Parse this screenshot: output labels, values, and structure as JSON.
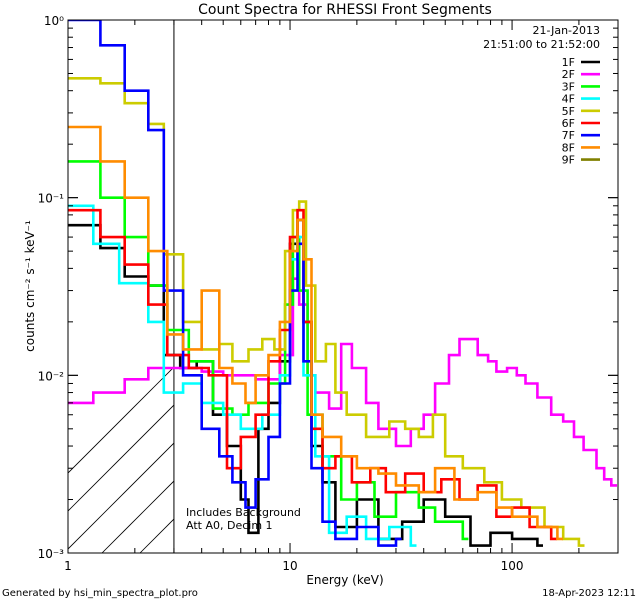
{
  "chart_data": {
    "type": "line",
    "title": "Count Spectra for RHESSI Front Segments",
    "xlabel": "Energy (keV)",
    "ylabel": "counts cm⁻² s⁻¹ keV⁻¹",
    "xscale": "log",
    "yscale": "log",
    "xlim": [
      1,
      300
    ],
    "ylim": [
      0.001,
      1
    ],
    "x_ticks": [
      {
        "v": 1,
        "label": "1"
      },
      {
        "v": 10,
        "label": "10"
      },
      {
        "v": 100,
        "label": "100"
      }
    ],
    "y_ticks": [
      {
        "v": 1,
        "label": "10⁰"
      },
      {
        "v": 0.1,
        "label": "10⁻¹"
      },
      {
        "v": 0.01,
        "label": "10⁻²"
      },
      {
        "v": 0.001,
        "label": "10⁻³"
      }
    ],
    "date": "21-Jan-2013",
    "time_range": "21:51:00 to 21:52:00",
    "excluded_below_keV": 3,
    "notes": [
      "Includes Background",
      "Att A0, Decim 1"
    ],
    "footer_left": "Generated by hsi_min_spectra_plot.pro",
    "footer_right": "18-Apr-2023 12:11",
    "legend_position": "top-right",
    "series": [
      {
        "name": "1F",
        "color": "#000000",
        "points": [
          [
            1.0,
            0.07
          ],
          [
            1.4,
            0.052
          ],
          [
            1.8,
            0.036
          ],
          [
            2.3,
            0.032
          ],
          [
            2.7,
            0.013
          ],
          [
            3.2,
            0.011
          ],
          [
            3.8,
            0.012
          ],
          [
            4.5,
            0.006
          ],
          [
            5.2,
            0.004
          ],
          [
            6.0,
            0.002
          ],
          [
            6.5,
            0.0013
          ],
          [
            7.2,
            0.005
          ],
          [
            8.0,
            0.007
          ],
          [
            9.0,
            0.012
          ],
          [
            10.0,
            0.055
          ],
          [
            10.8,
            0.075
          ],
          [
            11.5,
            0.02
          ],
          [
            12.5,
            0.004
          ],
          [
            14,
            0.0025
          ],
          [
            16,
            0.0014
          ],
          [
            20,
            0.002
          ],
          [
            25,
            0.0012
          ],
          [
            32,
            0.0015
          ],
          [
            40,
            0.002
          ],
          [
            50,
            0.0016
          ],
          [
            65,
            0.0011
          ],
          [
            80,
            0.0013
          ],
          [
            100,
            0.0012
          ],
          [
            130,
            0.0011
          ]
        ]
      },
      {
        "name": "2F",
        "color": "#ff00ff",
        "points": [
          [
            1.0,
            0.007
          ],
          [
            1.3,
            0.008
          ],
          [
            1.8,
            0.0095
          ],
          [
            2.3,
            0.011
          ],
          [
            2.8,
            0.011
          ],
          [
            3.3,
            0.011
          ],
          [
            4.0,
            0.0105
          ],
          [
            5.0,
            0.01
          ],
          [
            7.0,
            0.0095
          ],
          [
            9.0,
            0.013
          ],
          [
            10.3,
            0.035
          ],
          [
            11.0,
            0.025
          ],
          [
            12.0,
            0.01
          ],
          [
            13,
            0.008
          ],
          [
            15,
            0.0065
          ],
          [
            17,
            0.015
          ],
          [
            19,
            0.011
          ],
          [
            22,
            0.007
          ],
          [
            25,
            0.005
          ],
          [
            30,
            0.004
          ],
          [
            35,
            0.005
          ],
          [
            40,
            0.006
          ],
          [
            45,
            0.009
          ],
          [
            52,
            0.013
          ],
          [
            58,
            0.016
          ],
          [
            64,
            0.016
          ],
          [
            70,
            0.013
          ],
          [
            78,
            0.012
          ],
          [
            85,
            0.0105
          ],
          [
            95,
            0.011
          ],
          [
            105,
            0.01
          ],
          [
            115,
            0.009
          ],
          [
            130,
            0.0075
          ],
          [
            150,
            0.006
          ],
          [
            170,
            0.0055
          ],
          [
            190,
            0.0045
          ],
          [
            210,
            0.0038
          ],
          [
            240,
            0.003
          ],
          [
            260,
            0.0026
          ],
          [
            280,
            0.0024
          ]
        ]
      },
      {
        "name": "3F",
        "color": "#00ff00",
        "points": [
          [
            1.0,
            0.16
          ],
          [
            1.4,
            0.1
          ],
          [
            1.8,
            0.06
          ],
          [
            2.3,
            0.032
          ],
          [
            2.8,
            0.018
          ],
          [
            3.5,
            0.012
          ],
          [
            4.5,
            0.0065
          ],
          [
            5.5,
            0.006
          ],
          [
            6.5,
            0.007
          ],
          [
            8.0,
            0.009
          ],
          [
            9.5,
            0.025
          ],
          [
            10.3,
            0.06
          ],
          [
            11.0,
            0.03
          ],
          [
            12.0,
            0.006
          ],
          [
            14,
            0.0035
          ],
          [
            17,
            0.002
          ],
          [
            20,
            0.0025
          ],
          [
            24,
            0.0016
          ],
          [
            30,
            0.0022
          ],
          [
            38,
            0.0018
          ],
          [
            45,
            0.0015
          ],
          [
            60,
            0.0012
          ]
        ]
      },
      {
        "name": "4F",
        "color": "#00ffff",
        "points": [
          [
            1.0,
            0.09
          ],
          [
            1.3,
            0.055
          ],
          [
            1.7,
            0.033
          ],
          [
            2.3,
            0.02
          ],
          [
            2.7,
            0.008
          ],
          [
            3.3,
            0.009
          ],
          [
            4.0,
            0.007
          ],
          [
            5.0,
            0.006
          ],
          [
            6.0,
            0.005
          ],
          [
            7.5,
            0.006
          ],
          [
            9.0,
            0.01
          ],
          [
            10.0,
            0.045
          ],
          [
            10.8,
            0.06
          ],
          [
            11.5,
            0.01
          ],
          [
            13,
            0.0035
          ],
          [
            15,
            0.0013
          ],
          [
            18,
            0.0016
          ],
          [
            22,
            0.0012
          ],
          [
            28,
            0.0014
          ],
          [
            35,
            0.0011
          ]
        ]
      },
      {
        "name": "5F",
        "color": "#cccc00",
        "points": [
          [
            1.0,
            0.47
          ],
          [
            1.4,
            0.44
          ],
          [
            1.8,
            0.34
          ],
          [
            2.3,
            0.26
          ],
          [
            2.7,
            0.048
          ],
          [
            3.3,
            0.02
          ],
          [
            4.0,
            0.014
          ],
          [
            4.8,
            0.015
          ],
          [
            5.5,
            0.012
          ],
          [
            6.5,
            0.014
          ],
          [
            7.5,
            0.016
          ],
          [
            8.5,
            0.014
          ],
          [
            9.5,
            0.05
          ],
          [
            10.3,
            0.085
          ],
          [
            11.0,
            0.095
          ],
          [
            11.8,
            0.032
          ],
          [
            13.0,
            0.012
          ],
          [
            14.5,
            0.015
          ],
          [
            16,
            0.008
          ],
          [
            18,
            0.006
          ],
          [
            22,
            0.0045
          ],
          [
            28,
            0.0055
          ],
          [
            33,
            0.005
          ],
          [
            38,
            0.0045
          ],
          [
            44,
            0.006
          ],
          [
            50,
            0.0035
          ],
          [
            60,
            0.003
          ],
          [
            75,
            0.0025
          ],
          [
            90,
            0.002
          ],
          [
            110,
            0.0018
          ],
          [
            140,
            0.0014
          ],
          [
            170,
            0.0012
          ],
          [
            200,
            0.0011
          ]
        ]
      },
      {
        "name": "6F",
        "color": "#ff0000",
        "points": [
          [
            1.0,
            0.085
          ],
          [
            1.4,
            0.06
          ],
          [
            1.8,
            0.042
          ],
          [
            2.3,
            0.025
          ],
          [
            2.8,
            0.013
          ],
          [
            3.5,
            0.011
          ],
          [
            4.3,
            0.01
          ],
          [
            5.2,
            0.003
          ],
          [
            6.0,
            0.0045
          ],
          [
            7.0,
            0.006
          ],
          [
            8.0,
            0.012
          ],
          [
            9.0,
            0.018
          ],
          [
            10.0,
            0.06
          ],
          [
            10.8,
            0.085
          ],
          [
            11.5,
            0.02
          ],
          [
            12.5,
            0.005
          ],
          [
            14,
            0.003
          ],
          [
            16,
            0.0035
          ],
          [
            19,
            0.0025
          ],
          [
            23,
            0.003
          ],
          [
            27,
            0.0022
          ],
          [
            33,
            0.0028
          ],
          [
            40,
            0.0022
          ],
          [
            48,
            0.0026
          ],
          [
            58,
            0.002
          ],
          [
            70,
            0.0024
          ],
          [
            85,
            0.0016
          ],
          [
            100,
            0.0018
          ],
          [
            120,
            0.0014
          ],
          [
            150,
            0.0012
          ]
        ]
      },
      {
        "name": "7F",
        "color": "#0000ff",
        "points": [
          [
            1.0,
            1.0
          ],
          [
            1.4,
            0.72
          ],
          [
            1.8,
            0.4
          ],
          [
            2.3,
            0.24
          ],
          [
            2.7,
            0.03
          ],
          [
            3.3,
            0.01
          ],
          [
            4.0,
            0.005
          ],
          [
            4.8,
            0.0035
          ],
          [
            5.5,
            0.0025
          ],
          [
            6.3,
            0.0018
          ],
          [
            7.0,
            0.0026
          ],
          [
            8.0,
            0.0045
          ],
          [
            9.0,
            0.009
          ],
          [
            10.0,
            0.03
          ],
          [
            10.8,
            0.055
          ],
          [
            11.5,
            0.012
          ],
          [
            12.5,
            0.003
          ],
          [
            14,
            0.0015
          ],
          [
            16,
            0.0012
          ],
          [
            20,
            0.0014
          ],
          [
            25,
            0.0011
          ],
          [
            30,
            0.0012
          ]
        ]
      },
      {
        "name": "8F",
        "color": "#ff8c00",
        "points": [
          [
            1.0,
            0.25
          ],
          [
            1.4,
            0.16
          ],
          [
            1.8,
            0.1
          ],
          [
            2.3,
            0.05
          ],
          [
            2.8,
            0.017
          ],
          [
            3.3,
            0.014
          ],
          [
            4.0,
            0.03
          ],
          [
            4.8,
            0.011
          ],
          [
            5.5,
            0.009
          ],
          [
            6.3,
            0.007
          ],
          [
            7.0,
            0.01
          ],
          [
            8.0,
            0.013
          ],
          [
            9.0,
            0.02
          ],
          [
            10.0,
            0.05
          ],
          [
            10.8,
            0.075
          ],
          [
            11.5,
            0.045
          ],
          [
            12.5,
            0.006
          ],
          [
            14,
            0.0045
          ],
          [
            17,
            0.0035
          ],
          [
            20,
            0.003
          ],
          [
            25,
            0.0028
          ],
          [
            30,
            0.0024
          ],
          [
            38,
            0.0022
          ],
          [
            45,
            0.003
          ],
          [
            55,
            0.002
          ],
          [
            70,
            0.0022
          ],
          [
            85,
            0.0018
          ],
          [
            100,
            0.0016
          ],
          [
            130,
            0.0014
          ],
          [
            160,
            0.0012
          ]
        ]
      },
      {
        "name": "9F",
        "color": "#808000",
        "points": []
      }
    ]
  }
}
